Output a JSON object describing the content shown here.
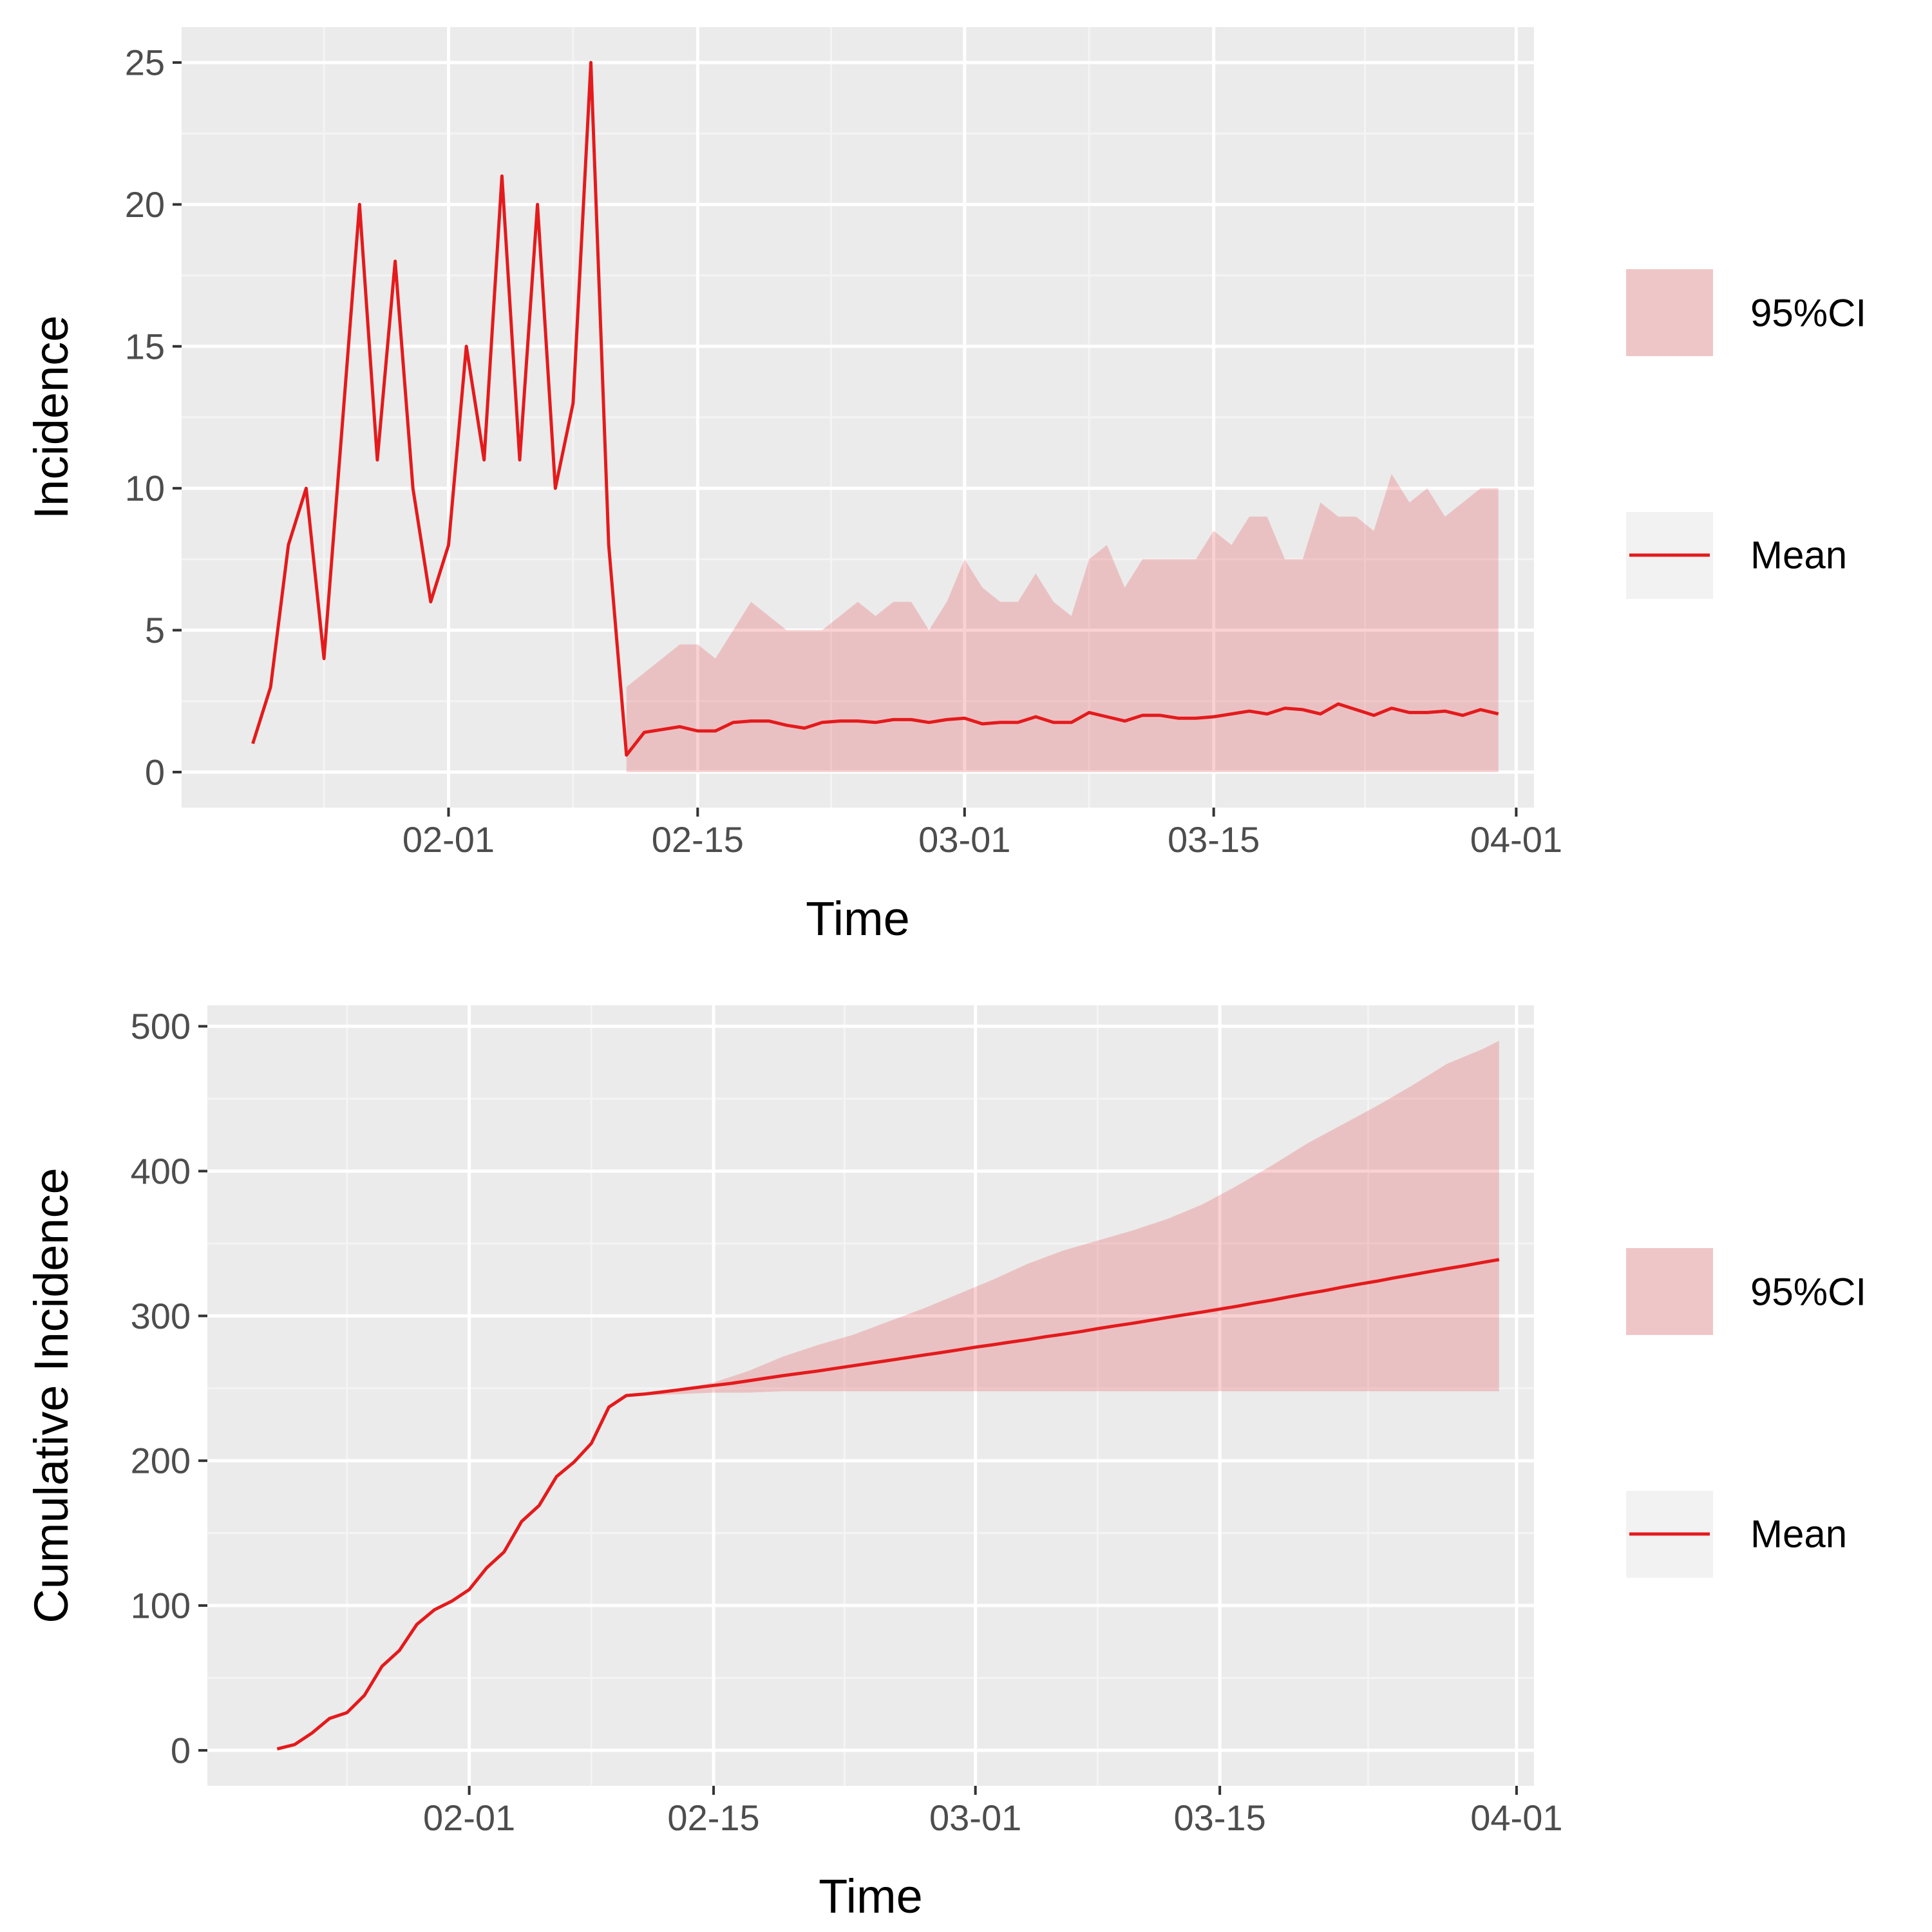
{
  "colors": {
    "panel": "#EBEBEB",
    "grid_major": "#FFFFFF",
    "grid_minor": "#F4F4F4",
    "mean": "#E41A1C",
    "ci_fill": "#E41A1C",
    "legend_key": "#F2F2F2",
    "tick": "#333333"
  },
  "chart_data": [
    {
      "type": "area",
      "xlabel": "Time",
      "ylabel": "Incidence",
      "x_type": "date",
      "year": 2020,
      "xlim": [
        "01-17",
        "04-02"
      ],
      "ylim": [
        -1.25,
        26.25
      ],
      "y_ticks": [
        0,
        5,
        10,
        15,
        20,
        25
      ],
      "x_ticks": [
        "02-01",
        "02-15",
        "03-01",
        "03-15",
        "04-01"
      ],
      "legend": {
        "position": "right",
        "entries": [
          {
            "label": "95%CI",
            "type": "fill"
          },
          {
            "label": "Mean",
            "type": "line"
          }
        ]
      },
      "grid": true,
      "series": [
        {
          "name": "Mean",
          "kind": "line",
          "x": [
            "01-21",
            "01-22",
            "01-23",
            "01-24",
            "01-25",
            "01-26",
            "01-27",
            "01-28",
            "01-29",
            "01-30",
            "01-31",
            "02-01",
            "02-02",
            "02-03",
            "02-04",
            "02-05",
            "02-06",
            "02-07",
            "02-08",
            "02-09",
            "02-10",
            "02-11",
            "02-12",
            "02-13",
            "02-14",
            "02-15",
            "02-16",
            "02-17",
            "02-18",
            "02-19",
            "02-20",
            "02-21",
            "02-22",
            "02-23",
            "02-24",
            "02-25",
            "02-26",
            "02-27",
            "02-28",
            "02-29",
            "03-01",
            "03-02",
            "03-03",
            "03-04",
            "03-05",
            "03-06",
            "03-07",
            "03-08",
            "03-09",
            "03-10",
            "03-11",
            "03-12",
            "03-13",
            "03-14",
            "03-15",
            "03-16",
            "03-17",
            "03-18",
            "03-19",
            "03-20",
            "03-21",
            "03-22",
            "03-23",
            "03-24",
            "03-25",
            "03-26",
            "03-27",
            "03-28",
            "03-29",
            "03-30",
            "03-31"
          ],
          "y": [
            1,
            3,
            8,
            10,
            4,
            12,
            20,
            11,
            18,
            10,
            6,
            8,
            15,
            11,
            21,
            11,
            20,
            10,
            13,
            25,
            8,
            0.6,
            1.4,
            1.5,
            1.6,
            1.45,
            1.45,
            1.75,
            1.8,
            1.8,
            1.65,
            1.55,
            1.75,
            1.8,
            1.8,
            1.75,
            1.85,
            1.85,
            1.75,
            1.85,
            1.9,
            1.7,
            1.75,
            1.75,
            1.95,
            1.75,
            1.75,
            2.1,
            1.95,
            1.8,
            2.0,
            2.0,
            1.9,
            1.9,
            1.95,
            2.05,
            2.15,
            2.05,
            2.25,
            2.2,
            2.05,
            2.4,
            2.2,
            2.0,
            2.25,
            2.1,
            2.1,
            2.15,
            2.0,
            2.2,
            2.05
          ]
        },
        {
          "name": "95%CI",
          "kind": "ribbon",
          "x": [
            "02-11",
            "02-12",
            "02-13",
            "02-14",
            "02-15",
            "02-16",
            "02-17",
            "02-18",
            "02-19",
            "02-20",
            "02-21",
            "02-22",
            "02-23",
            "02-24",
            "02-25",
            "02-26",
            "02-27",
            "02-28",
            "02-29",
            "03-01",
            "03-02",
            "03-03",
            "03-04",
            "03-05",
            "03-06",
            "03-07",
            "03-08",
            "03-09",
            "03-10",
            "03-11",
            "03-12",
            "03-13",
            "03-14",
            "03-15",
            "03-16",
            "03-17",
            "03-18",
            "03-19",
            "03-20",
            "03-21",
            "03-22",
            "03-23",
            "03-24",
            "03-25",
            "03-26",
            "03-27",
            "03-28",
            "03-29",
            "03-30",
            "03-31"
          ],
          "lower": [
            0,
            0,
            0,
            0,
            0,
            0,
            0,
            0,
            0,
            0,
            0,
            0,
            0,
            0,
            0,
            0,
            0,
            0,
            0,
            0,
            0,
            0,
            0,
            0,
            0,
            0,
            0,
            0,
            0,
            0,
            0,
            0,
            0,
            0,
            0,
            0,
            0,
            0,
            0,
            0,
            0,
            0,
            0,
            0,
            0,
            0,
            0,
            0,
            0,
            0
          ],
          "upper": [
            3,
            3.5,
            4,
            4.5,
            4.5,
            4,
            5,
            6,
            5.5,
            5,
            5,
            5,
            5.5,
            6,
            5.5,
            6,
            6,
            5,
            6,
            7.5,
            6.5,
            6,
            6,
            7,
            6,
            5.5,
            7.5,
            8,
            6.5,
            7.5,
            7.5,
            7.5,
            7.5,
            8.5,
            8,
            9,
            9,
            7.5,
            7.5,
            9.5,
            9,
            9,
            8.5,
            10.5,
            9.5,
            10,
            9,
            9.5,
            10,
            10
          ]
        }
      ]
    },
    {
      "type": "area",
      "xlabel": "Time",
      "ylabel": "Cumulative Incidence",
      "x_type": "date",
      "year": 2020,
      "xlim": [
        "01-17",
        "04-02"
      ],
      "ylim": [
        -24.5,
        514.5
      ],
      "y_ticks": [
        0,
        100,
        200,
        300,
        400,
        500
      ],
      "x_ticks": [
        "02-01",
        "02-15",
        "03-01",
        "03-15",
        "04-01"
      ],
      "legend": {
        "position": "right",
        "entries": [
          {
            "label": "95%CI",
            "type": "fill"
          },
          {
            "label": "Mean",
            "type": "line"
          }
        ]
      },
      "grid": true,
      "series": [
        {
          "name": "Mean",
          "kind": "line",
          "x": [
            "01-21",
            "01-22",
            "01-23",
            "01-24",
            "01-25",
            "01-26",
            "01-27",
            "01-28",
            "01-29",
            "01-30",
            "01-31",
            "02-01",
            "02-02",
            "02-03",
            "02-04",
            "02-05",
            "02-06",
            "02-07",
            "02-08",
            "02-09",
            "02-10",
            "02-11",
            "02-12",
            "02-13",
            "02-14",
            "02-15",
            "02-16",
            "02-17",
            "02-18",
            "02-19",
            "02-20",
            "02-21",
            "02-22",
            "02-23",
            "02-24",
            "02-25",
            "02-26",
            "02-27",
            "02-28",
            "02-29",
            "03-01",
            "03-02",
            "03-03",
            "03-04",
            "03-05",
            "03-06",
            "03-07",
            "03-08",
            "03-09",
            "03-10",
            "03-11",
            "03-12",
            "03-13",
            "03-14",
            "03-15",
            "03-16",
            "03-17",
            "03-18",
            "03-19",
            "03-20",
            "03-21",
            "03-22",
            "03-23",
            "03-24",
            "03-25",
            "03-26",
            "03-27",
            "03-28",
            "03-29",
            "03-30",
            "03-31"
          ],
          "y": [
            1,
            4,
            12,
            22,
            26,
            38,
            58,
            69,
            87,
            97,
            103,
            111,
            126,
            137,
            158,
            169,
            189,
            199,
            212,
            237,
            245,
            246,
            247.4,
            248.9,
            250.5,
            252,
            253.4,
            255.2,
            257,
            258.8,
            260.4,
            262,
            263.8,
            265.6,
            267.4,
            269.2,
            271,
            272.9,
            274.6,
            276.5,
            278.4,
            280.1,
            281.9,
            283.6,
            285.6,
            287.3,
            289.1,
            291.2,
            293.1,
            294.9,
            296.9,
            298.9,
            300.8,
            302.7,
            304.7,
            306.7,
            308.9,
            310.9,
            313.2,
            315.4,
            317.4,
            319.8,
            322,
            324,
            326.3,
            328.4,
            330.5,
            332.6,
            334.6,
            336.8,
            338.9
          ]
        },
        {
          "name": "95%CI",
          "kind": "ribbon",
          "x": [
            "02-11",
            "02-13",
            "02-15",
            "02-17",
            "02-19",
            "02-21",
            "02-23",
            "02-25",
            "02-27",
            "02-29",
            "03-02",
            "03-04",
            "03-06",
            "03-08",
            "03-10",
            "03-12",
            "03-14",
            "03-16",
            "03-18",
            "03-20",
            "03-22",
            "03-24",
            "03-26",
            "03-28",
            "03-30",
            "03-31"
          ],
          "lower": [
            245,
            246,
            247,
            247,
            248,
            248,
            248,
            248,
            248,
            248,
            248,
            248,
            248,
            248,
            248,
            248,
            248,
            248,
            248,
            248,
            248,
            248,
            248,
            248,
            248,
            248
          ],
          "upper": [
            245,
            249,
            254,
            262,
            272,
            280,
            287,
            296,
            305,
            315,
            325,
            336,
            345,
            352,
            359,
            367,
            377,
            390,
            404,
            419,
            432,
            445,
            459,
            474,
            484,
            490
          ]
        }
      ]
    }
  ]
}
